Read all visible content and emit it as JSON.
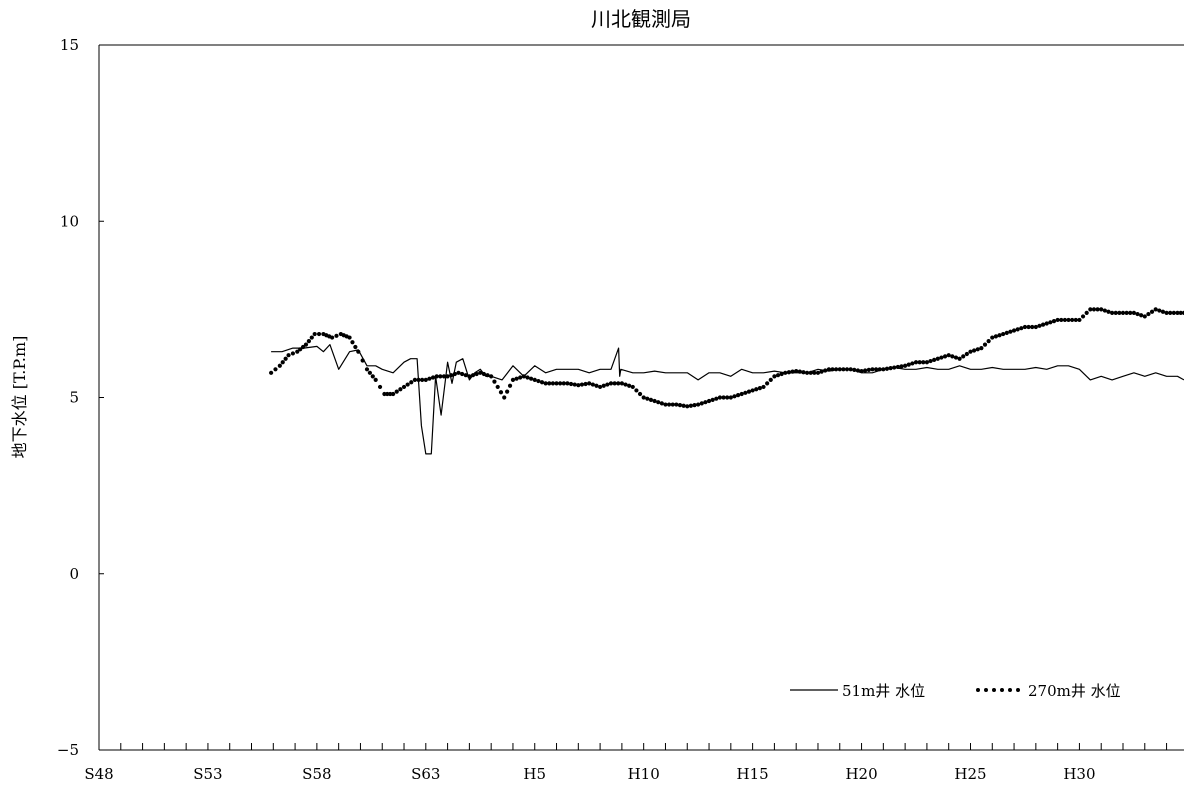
{
  "chart_data": {
    "type": "line",
    "title": "川北観測局",
    "ylabel": "地下水位 [T.P.m]",
    "xlabel": "",
    "xlim": [
      1973.0,
      2022.8
    ],
    "ylim": [
      -5,
      15
    ],
    "yticks": [
      -5,
      0,
      5,
      10,
      15
    ],
    "xticks": [
      {
        "label": "S48",
        "year": 1973
      },
      {
        "label": "S53",
        "year": 1978
      },
      {
        "label": "S58",
        "year": 1983
      },
      {
        "label": "S63",
        "year": 1988
      },
      {
        "label": "H5",
        "year": 1993
      },
      {
        "label": "H10",
        "year": 1998
      },
      {
        "label": "H15",
        "year": 2003
      },
      {
        "label": "H20",
        "year": 2008
      },
      {
        "label": "H25",
        "year": 2013
      },
      {
        "label": "H30",
        "year": 2018
      }
    ],
    "minor_tick_step_years": 1,
    "grid": false,
    "legend_position": "bottom-right",
    "series": [
      {
        "name": "51m井 水位",
        "style": "solid",
        "color": "#000000",
        "x": [
          1980.9,
          1981.4,
          1981.9,
          1982.4,
          1983.0,
          1983.3,
          1983.6,
          1984.0,
          1984.5,
          1984.9,
          1985.3,
          1985.7,
          1986.0,
          1986.5,
          1987.0,
          1987.3,
          1987.6,
          1987.8,
          1988.0,
          1988.25,
          1988.45,
          1988.7,
          1989.0,
          1989.2,
          1989.4,
          1989.7,
          1990.0,
          1990.25,
          1990.5,
          1990.75,
          1991.0,
          1991.5,
          1992.0,
          1992.5,
          1993.0,
          1993.5,
          1994.0,
          1994.5,
          1995.0,
          1995.5,
          1996.0,
          1996.5,
          1996.85,
          1996.9,
          1996.95,
          1997.5,
          1998.0,
          1998.5,
          1999.0,
          1999.5,
          2000.0,
          2000.5,
          2001.0,
          2001.5,
          2002.0,
          2002.5,
          2003.0,
          2003.5,
          2004.0,
          2004.5,
          2005.0,
          2005.5,
          2006.0,
          2006.5,
          2007.0,
          2007.5,
          2008.0,
          2008.5,
          2009.0,
          2009.5,
          2010.0,
          2010.5,
          2011.0,
          2011.5,
          2012.0,
          2012.5,
          2013.0,
          2013.5,
          2014.0,
          2014.5,
          2015.0,
          2015.5,
          2016.0,
          2016.5,
          2017.0,
          2017.5,
          2018.0,
          2018.5,
          2019.0,
          2019.5,
          2020.0,
          2020.5,
          2021.0,
          2021.5,
          2022.0,
          2022.5,
          2022.8
        ],
        "y": [
          6.3,
          6.3,
          6.4,
          6.4,
          6.45,
          6.3,
          6.5,
          5.8,
          6.3,
          6.35,
          5.9,
          5.9,
          5.8,
          5.7,
          6.0,
          6.1,
          6.1,
          4.2,
          3.4,
          3.4,
          5.6,
          4.5,
          6.0,
          5.4,
          6.0,
          6.1,
          5.5,
          5.7,
          5.8,
          5.6,
          5.6,
          5.5,
          5.9,
          5.6,
          5.9,
          5.7,
          5.8,
          5.8,
          5.8,
          5.7,
          5.8,
          5.8,
          6.4,
          5.6,
          5.8,
          5.7,
          5.7,
          5.75,
          5.7,
          5.7,
          5.7,
          5.5,
          5.7,
          5.7,
          5.6,
          5.8,
          5.7,
          5.7,
          5.75,
          5.7,
          5.7,
          5.7,
          5.8,
          5.75,
          5.8,
          5.8,
          5.7,
          5.7,
          5.8,
          5.85,
          5.8,
          5.8,
          5.85,
          5.8,
          5.8,
          5.9,
          5.8,
          5.8,
          5.85,
          5.8,
          5.8,
          5.8,
          5.85,
          5.8,
          5.9,
          5.9,
          5.8,
          5.5,
          5.6,
          5.5,
          5.6,
          5.7,
          5.6,
          5.7,
          5.6,
          5.6,
          5.5
        ]
      },
      {
        "name": "270m井 水位",
        "style": "dotted",
        "color": "#000000",
        "x": [
          1980.9,
          1981.3,
          1981.7,
          1982.1,
          1982.5,
          1982.9,
          1983.3,
          1983.7,
          1984.1,
          1984.5,
          1984.9,
          1985.3,
          1985.7,
          1986.1,
          1986.5,
          1987.0,
          1987.5,
          1988.0,
          1988.5,
          1989.0,
          1989.5,
          1990.0,
          1990.5,
          1991.0,
          1991.3,
          1991.6,
          1992.0,
          1992.5,
          1993.0,
          1993.5,
          1994.0,
          1994.5,
          1995.0,
          1995.5,
          1996.0,
          1996.5,
          1997.0,
          1997.5,
          1998.0,
          1998.5,
          1999.0,
          1999.5,
          2000.0,
          2000.5,
          2001.0,
          2001.5,
          2002.0,
          2002.5,
          2003.0,
          2003.5,
          2004.0,
          2004.5,
          2005.0,
          2005.5,
          2006.0,
          2006.5,
          2007.0,
          2007.5,
          2008.0,
          2008.5,
          2009.0,
          2009.5,
          2010.0,
          2010.5,
          2011.0,
          2011.5,
          2012.0,
          2012.5,
          2013.0,
          2013.5,
          2014.0,
          2014.5,
          2015.0,
          2015.5,
          2016.0,
          2016.5,
          2017.0,
          2017.5,
          2018.0,
          2018.5,
          2019.0,
          2019.5,
          2020.0,
          2020.5,
          2021.0,
          2021.5,
          2022.0,
          2022.5,
          2022.8
        ],
        "y": [
          5.7,
          5.9,
          6.2,
          6.3,
          6.5,
          6.8,
          6.8,
          6.7,
          6.8,
          6.7,
          6.3,
          5.8,
          5.5,
          5.1,
          5.1,
          5.3,
          5.5,
          5.5,
          5.6,
          5.6,
          5.7,
          5.6,
          5.7,
          5.6,
          5.3,
          5.0,
          5.5,
          5.6,
          5.5,
          5.4,
          5.4,
          5.4,
          5.35,
          5.4,
          5.3,
          5.4,
          5.4,
          5.3,
          5.0,
          4.9,
          4.8,
          4.8,
          4.75,
          4.8,
          4.9,
          5.0,
          5.0,
          5.1,
          5.2,
          5.3,
          5.6,
          5.7,
          5.75,
          5.7,
          5.7,
          5.8,
          5.8,
          5.8,
          5.75,
          5.8,
          5.8,
          5.85,
          5.9,
          6.0,
          6.0,
          6.1,
          6.2,
          6.1,
          6.3,
          6.4,
          6.7,
          6.8,
          6.9,
          7.0,
          7.0,
          7.1,
          7.2,
          7.2,
          7.2,
          7.5,
          7.5,
          7.4,
          7.4,
          7.4,
          7.3,
          7.5,
          7.4,
          7.4,
          7.4
        ]
      }
    ]
  }
}
